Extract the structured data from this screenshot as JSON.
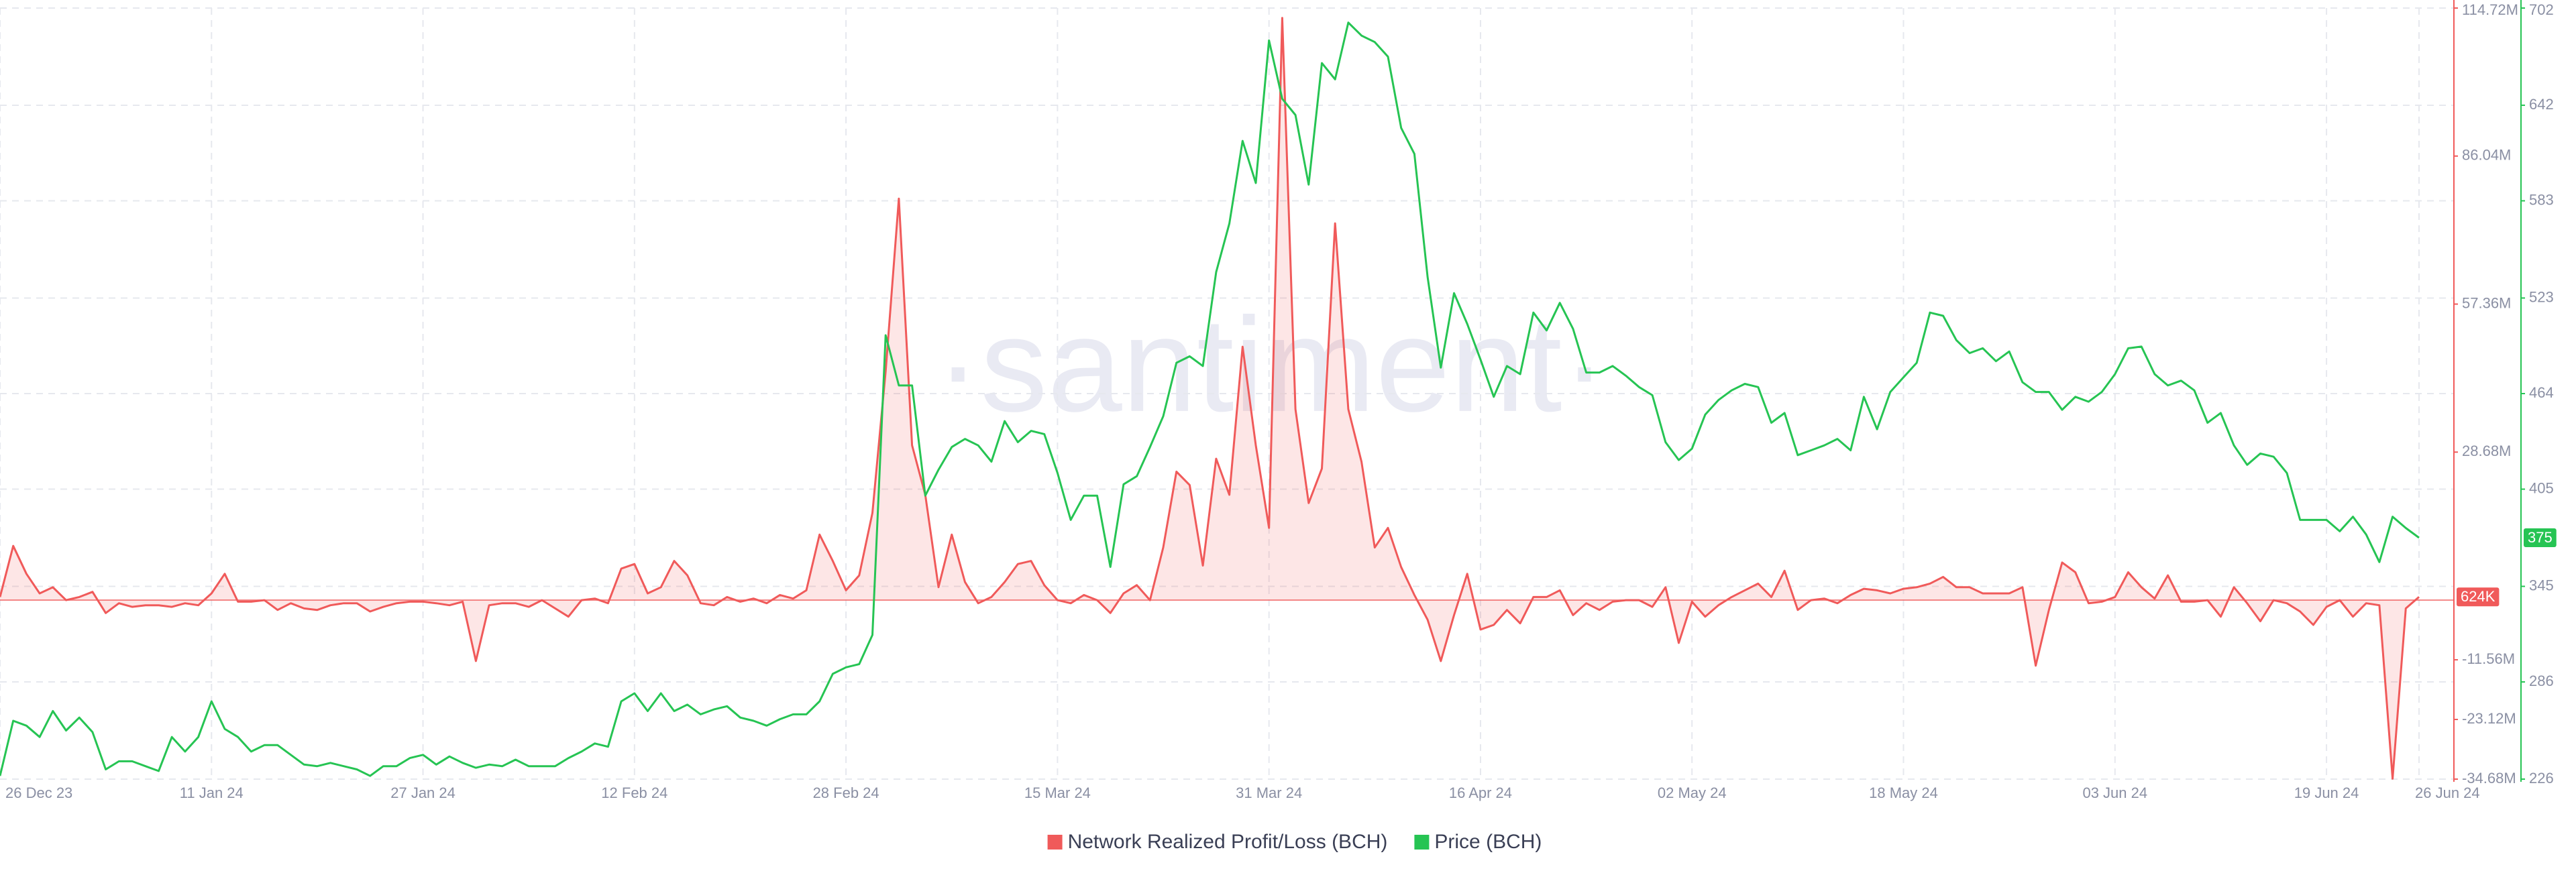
{
  "chart_data": {
    "type": "line",
    "watermark": "·santiment·",
    "categories": [
      "26 Dec 23",
      null,
      null,
      null,
      null,
      null,
      null,
      null,
      null,
      null,
      null,
      null,
      null,
      null,
      null,
      null,
      "11 Jan 24",
      null,
      null,
      null,
      null,
      null,
      null,
      null,
      null,
      null,
      null,
      null,
      null,
      null,
      null,
      null,
      "27 Jan 24",
      null,
      null,
      null,
      null,
      null,
      null,
      null,
      null,
      null,
      null,
      null,
      null,
      null,
      null,
      null,
      "12 Feb 24",
      null,
      null,
      null,
      null,
      null,
      null,
      null,
      null,
      null,
      null,
      null,
      null,
      null,
      null,
      null,
      "28 Feb 24",
      null,
      null,
      null,
      null,
      null,
      null,
      null,
      null,
      null,
      null,
      null,
      null,
      null,
      null,
      null,
      "15 Mar 24",
      null,
      null,
      null,
      null,
      null,
      null,
      null,
      null,
      null,
      null,
      null,
      null,
      null,
      null,
      null,
      "31 Mar 24",
      null,
      null,
      null,
      null,
      null,
      null,
      null,
      null,
      null,
      null,
      null,
      null,
      null,
      null,
      null,
      "16 Apr 24",
      null,
      null,
      null,
      null,
      null,
      null,
      null,
      null,
      null,
      null,
      null,
      null,
      null,
      null,
      null,
      "02 May 24",
      null,
      null,
      null,
      null,
      null,
      null,
      null,
      null,
      null,
      null,
      null,
      null,
      null,
      null,
      null,
      "18 May 24",
      null,
      null,
      null,
      null,
      null,
      null,
      null,
      null,
      null,
      null,
      null,
      null,
      null,
      null,
      null,
      "03 Jun 24",
      null,
      null,
      null,
      null,
      null,
      null,
      null,
      null,
      null,
      null,
      null,
      null,
      null,
      null,
      null,
      "19 Jun 24",
      null,
      null,
      null,
      null,
      null,
      null,
      "26 Jun 24"
    ],
    "series": [
      {
        "name": "Network Realized Profit/Loss (BCH)",
        "color": "#f05a5a",
        "fill": "rgba(240,90,90,0.15)",
        "axis": "y",
        "last_value_label": "624K",
        "values": [
          0.6,
          10.5,
          5.1,
          1.3,
          2.5,
          0,
          0.6,
          1.6,
          -2.5,
          -0.6,
          -1.3,
          -1.0,
          -1.0,
          -1.3,
          -0.6,
          -1.0,
          1.3,
          5.1,
          -0.3,
          -0.3,
          0,
          -1.9,
          -0.6,
          -1.6,
          -1.9,
          -1.0,
          -0.6,
          -0.6,
          -2.2,
          -1.3,
          -0.6,
          -0.3,
          -0.3,
          -0.6,
          -1.0,
          -0.3,
          -11.8,
          -1.0,
          -0.6,
          -0.6,
          -1.3,
          0,
          -1.6,
          -3.2,
          0,
          0.3,
          -0.6,
          6.1,
          7.0,
          1.3,
          2.5,
          7.6,
          4.8,
          -0.6,
          -1.0,
          0.6,
          -0.3,
          0.3,
          -0.6,
          1.0,
          0.3,
          1.9,
          12.7,
          7.6,
          1.9,
          4.8,
          16.9,
          44.3,
          77.8,
          30.0,
          20.4,
          2.5,
          12.7,
          3.5,
          -0.6,
          0.6,
          3.5,
          7.0,
          7.6,
          2.9,
          0,
          -0.6,
          1.0,
          0,
          -2.5,
          1.3,
          2.9,
          0,
          10.2,
          24.9,
          22.3,
          6.7,
          27.4,
          20.4,
          49.1,
          30.0,
          14.0,
          112.8,
          37.0,
          18.8,
          25.5,
          73.0,
          37.0,
          26.8,
          10.2,
          14.0,
          6.4,
          1.0,
          -3.8,
          -11.8,
          -2.9,
          5.1,
          -5.7,
          -4.8,
          -1.9,
          -4.5,
          0.6,
          0.6,
          1.9,
          -2.9,
          -0.6,
          -1.9,
          -0.3,
          0,
          0,
          -1.3,
          2.5,
          -8.3,
          -0.3,
          -3.2,
          -1.0,
          0.6,
          1.9,
          3.2,
          0.6,
          5.7,
          -1.9,
          0,
          0.3,
          -0.6,
          1.0,
          2.2,
          1.9,
          1.3,
          2.2,
          2.5,
          3.2,
          4.5,
          2.5,
          2.5,
          1.3,
          1.3,
          1.3,
          2.5,
          -12.7,
          -1.9,
          7.3,
          5.4,
          -0.6,
          -0.3,
          0.6,
          5.4,
          2.5,
          0.3,
          4.8,
          -0.3,
          -0.3,
          0,
          -3.2,
          2.5,
          -0.6,
          -4.1,
          0,
          -0.6,
          -2.2,
          -4.8,
          -1.3,
          0,
          -3.2,
          -0.6,
          -1.0,
          -34.6,
          -1.6,
          0.624
        ]
      },
      {
        "name": "Price (BCH)",
        "color": "#26c453",
        "axis": "y2",
        "values": [
          228,
          262,
          259,
          252,
          268,
          256,
          264,
          255,
          232,
          237,
          237,
          234,
          231,
          252,
          243,
          252,
          274,
          257,
          252,
          243,
          247,
          247,
          241,
          235,
          234,
          236,
          234,
          232,
          228,
          234,
          234,
          239,
          241,
          235,
          240,
          236,
          233,
          235,
          234,
          238,
          234,
          234,
          234,
          239,
          243,
          248,
          246,
          274,
          279,
          268,
          279,
          268,
          272,
          266,
          269,
          271,
          264,
          262,
          259,
          263,
          266,
          266,
          274,
          291,
          295,
          297,
          315,
          500,
          469,
          469,
          401,
          417,
          431,
          436,
          432,
          422,
          447,
          434,
          441,
          439,
          415,
          386,
          401,
          401,
          357,
          408,
          413,
          431,
          450,
          483,
          487,
          481,
          539,
          569,
          620,
          594,
          682,
          646,
          636,
          593,
          668,
          658,
          693,
          685,
          681,
          672,
          628,
          612,
          536,
          480,
          526,
          507,
          485,
          462,
          481,
          476,
          514,
          503,
          520,
          504,
          477,
          477,
          481,
          475,
          468,
          463,
          434,
          423,
          430,
          451,
          460,
          466,
          470,
          468,
          446,
          452,
          426,
          429,
          432,
          436,
          429,
          462,
          442,
          465,
          474,
          483,
          514,
          512,
          497,
          489,
          492,
          484,
          490,
          471,
          465,
          465,
          454,
          462,
          459,
          465,
          476,
          492,
          493,
          476,
          469,
          472,
          466,
          446,
          452,
          432,
          420,
          427,
          425,
          415,
          386,
          386,
          386,
          379,
          388,
          377,
          360,
          388,
          381,
          375
        ]
      }
    ],
    "ylim": [
      -34.68,
      114.72
    ],
    "yticks": [
      {
        "value": -34.68,
        "label": "-34.68M"
      },
      {
        "value": -23.12,
        "label": "-23.12M"
      },
      {
        "value": -11.56,
        "label": "-11.56M"
      },
      {
        "value": 28.68,
        "label": "28.68M"
      },
      {
        "value": 57.36,
        "label": "57.36M"
      },
      {
        "value": 86.04,
        "label": "86.04M"
      },
      {
        "value": 114.72,
        "label": "114.72M"
      }
    ],
    "y2lim": [
      226,
      702
    ],
    "y2ticks": [
      226,
      286,
      345,
      405,
      464,
      523,
      583,
      642,
      702
    ],
    "grid": true,
    "legend": "bottom"
  }
}
